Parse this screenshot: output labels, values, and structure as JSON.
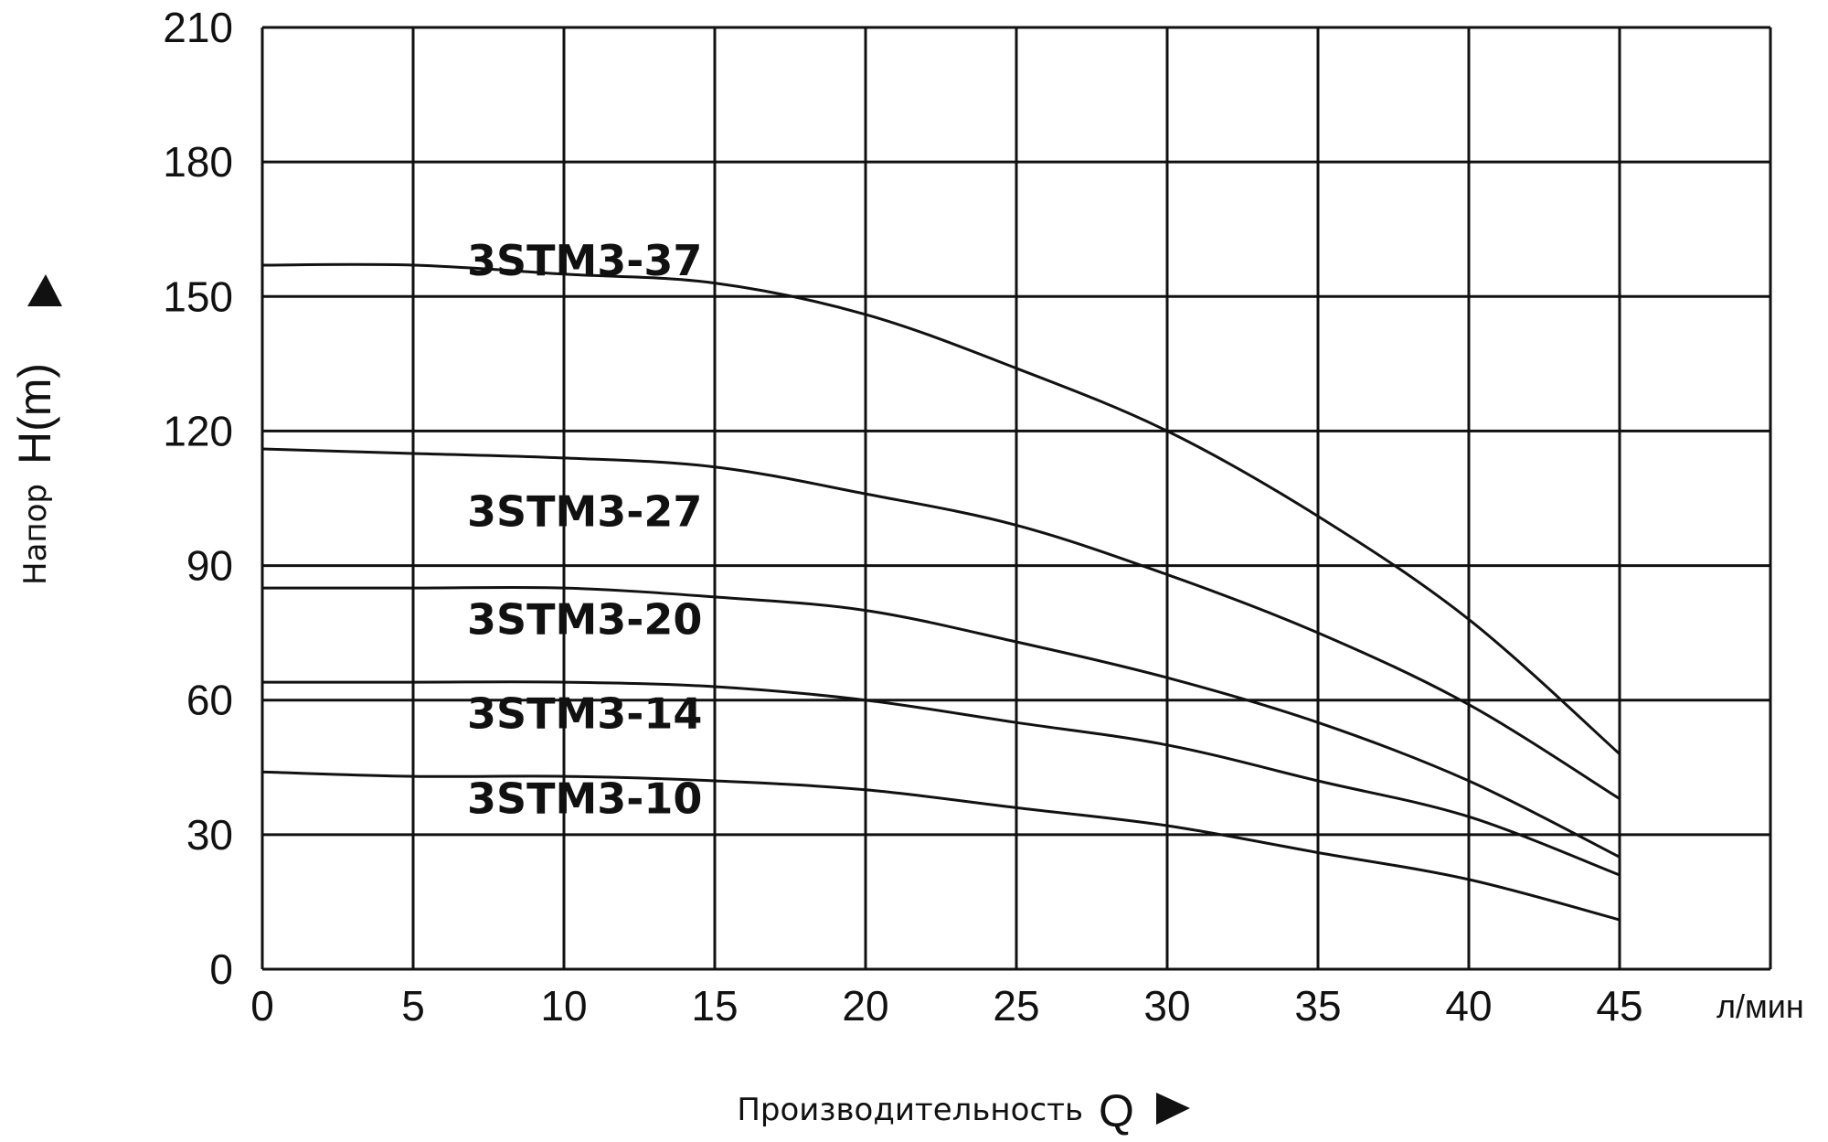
{
  "chart_data": {
    "type": "line",
    "title": "",
    "xlabel": "Производительность",
    "xsymbol": "Q",
    "xunit": "л/мин",
    "ylabel": "Напор",
    "ysymbol": "H(m)",
    "xlim": [
      0,
      50
    ],
    "ylim": [
      0,
      210
    ],
    "xticks": [
      0,
      5,
      10,
      15,
      20,
      25,
      30,
      35,
      40,
      45
    ],
    "yticks": [
      0,
      30,
      60,
      90,
      120,
      150,
      180,
      210
    ],
    "grid": true,
    "series": [
      {
        "name": "3STM3-37",
        "x": [
          0,
          5,
          10,
          15,
          20,
          25,
          30,
          35,
          40,
          45
        ],
        "y": [
          157,
          157,
          155,
          153,
          146,
          134,
          120,
          101,
          78,
          48
        ]
      },
      {
        "name": "3STM3-27",
        "x": [
          0,
          5,
          10,
          15,
          20,
          25,
          30,
          35,
          40,
          45
        ],
        "y": [
          116,
          115,
          114,
          112,
          106,
          99,
          88,
          75,
          59,
          38
        ]
      },
      {
        "name": "3STM3-20",
        "x": [
          0,
          5,
          10,
          15,
          20,
          25,
          30,
          35,
          40,
          45
        ],
        "y": [
          85,
          85,
          85,
          83,
          80,
          73,
          65,
          55,
          42,
          25
        ]
      },
      {
        "name": "3STM3-14",
        "x": [
          0,
          5,
          10,
          15,
          20,
          25,
          30,
          35,
          40,
          45
        ],
        "y": [
          64,
          64,
          64,
          63,
          60,
          55,
          50,
          42,
          34,
          21
        ]
      },
      {
        "name": "3STM3-10",
        "x": [
          0,
          5,
          10,
          15,
          20,
          25,
          30,
          35,
          40,
          45
        ],
        "y": [
          44,
          43,
          43,
          42,
          40,
          36,
          32,
          26,
          20,
          11
        ]
      }
    ]
  }
}
